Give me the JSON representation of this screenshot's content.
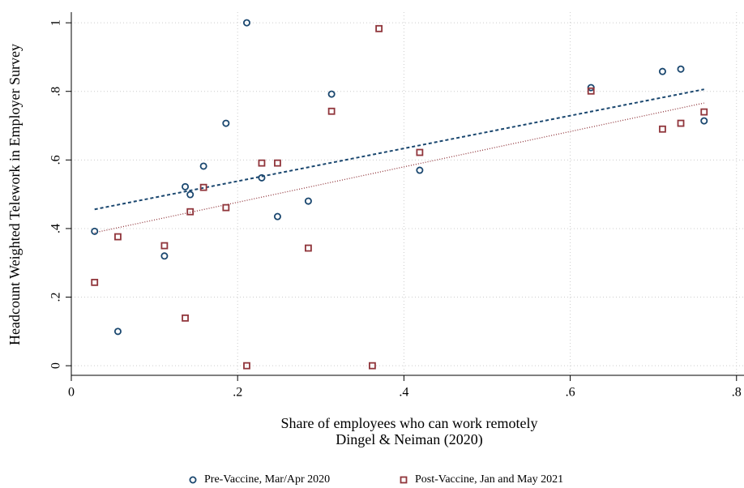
{
  "chart_data": {
    "type": "scatter",
    "xlabel": [
      "Share of employees who can work remotely",
      "Dingel & Neiman (2020)"
    ],
    "ylabel": "Headcount Weighted Telework in Employer Survey",
    "xlim": [
      0,
      0.809
    ],
    "ylim": [
      -0.028,
      1.031
    ],
    "xticks": [
      0,
      {
        "value": 0.2,
        "label": ".2"
      },
      {
        "value": 0.4,
        "label": ".4"
      },
      {
        "value": 0.6,
        "label": ".6"
      },
      {
        "value": 0.8,
        "label": ".8"
      }
    ],
    "yticks": [
      0,
      {
        "value": 0.2,
        "label": ".2"
      },
      {
        "value": 0.4,
        "label": ".4"
      },
      {
        "value": 0.6,
        "label": ".6"
      },
      {
        "value": 0.8,
        "label": ".8"
      },
      1
    ],
    "grid": true,
    "series": [
      {
        "name": "Pre-Vaccine, Mar/Apr 2020",
        "color": "#1a476f",
        "marker": "circle",
        "x": [
          0.028,
          0.056,
          0.112,
          0.137,
          0.143,
          0.159,
          0.186,
          0.211,
          0.229,
          0.248,
          0.285,
          0.313,
          0.419,
          0.625,
          0.711,
          0.733,
          0.761
        ],
        "values": [
          0.392,
          0.1,
          0.32,
          0.522,
          0.499,
          0.582,
          0.707,
          1.0,
          0.548,
          0.435,
          0.48,
          0.792,
          0.57,
          0.811,
          0.858,
          0.865,
          0.714
        ]
      },
      {
        "name": "Post-Vaccine, Jan and May 2021",
        "color": "#90353b",
        "marker": "square",
        "x": [
          0.028,
          0.056,
          0.112,
          0.137,
          0.143,
          0.159,
          0.186,
          0.211,
          0.229,
          0.248,
          0.285,
          0.313,
          0.362,
          0.37,
          0.419,
          0.625,
          0.711,
          0.733,
          0.761
        ],
        "values": [
          0.243,
          0.376,
          0.35,
          0.139,
          0.449,
          0.52,
          0.461,
          0,
          0.591,
          0.591,
          0.343,
          0.742,
          0,
          0.983,
          0.622,
          0.801,
          0.69,
          0.707,
          0.74
        ]
      }
    ],
    "fits": [
      {
        "color": "#1a476f",
        "style": "dashed",
        "x": [
          0.028,
          0.761
        ],
        "values": [
          0.456,
          0.806
        ]
      },
      {
        "color": "#90353b",
        "style": "dotted",
        "x": [
          0.028,
          0.761
        ],
        "values": [
          0.388,
          0.766
        ]
      }
    ]
  }
}
